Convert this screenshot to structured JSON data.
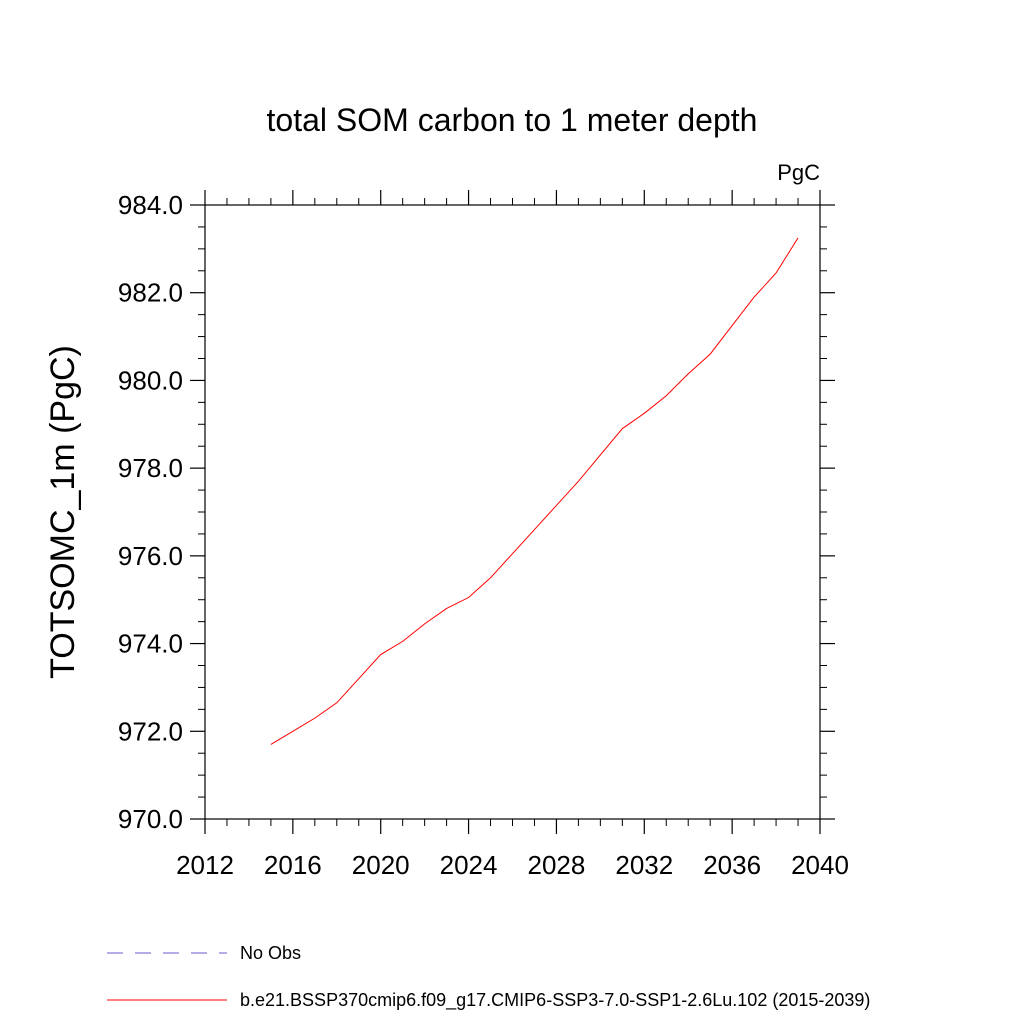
{
  "chart_data": {
    "type": "line",
    "title": "total SOM carbon to 1 meter depth",
    "units_label": "PgC",
    "xlabel": "",
    "ylabel": "TOTSOMC_1m  (PgC)",
    "xlim": [
      2012,
      2040
    ],
    "ylim": [
      970.0,
      984.0
    ],
    "x_ticks": [
      2012,
      2016,
      2020,
      2024,
      2028,
      2032,
      2036,
      2040
    ],
    "x_tick_labels": [
      "2012",
      "2016",
      "2020",
      "2024",
      "2028",
      "2032",
      "2036",
      "2040"
    ],
    "y_ticks": [
      970.0,
      972.0,
      974.0,
      976.0,
      978.0,
      980.0,
      982.0,
      984.0
    ],
    "y_tick_labels": [
      "970.0",
      "972.0",
      "974.0",
      "976.0",
      "978.0",
      "980.0",
      "982.0",
      "984.0"
    ],
    "grid": false,
    "legend_position": "bottom",
    "series": [
      {
        "name": "b.e21.BSSP370cmip6.f09_g17.CMIP6-SSP3-7.0-SSP1-2.6Lu.102 (2015-2039)",
        "color": "#ff0000",
        "style": "solid",
        "x": [
          2015,
          2016,
          2017,
          2018,
          2019,
          2020,
          2021,
          2022,
          2023,
          2024,
          2025,
          2026,
          2027,
          2028,
          2029,
          2030,
          2031,
          2032,
          2033,
          2034,
          2035,
          2036,
          2037,
          2038,
          2039
        ],
        "y": [
          971.7,
          972.0,
          972.3,
          972.65,
          973.2,
          973.75,
          974.05,
          974.45,
          974.8,
          975.05,
          975.5,
          976.05,
          976.6,
          977.15,
          977.7,
          978.3,
          978.9,
          979.25,
          979.65,
          980.15,
          980.6,
          981.25,
          981.9,
          982.45,
          983.25
        ]
      }
    ],
    "legend": [
      {
        "label": "No Obs",
        "color": "#6a5acd",
        "style": "dashed"
      },
      {
        "label": "b.e21.BSSP370cmip6.f09_g17.CMIP6-SSP3-7.0-SSP1-2.6Lu.102 (2015-2039)",
        "color": "#ff0000",
        "style": "solid"
      }
    ]
  }
}
